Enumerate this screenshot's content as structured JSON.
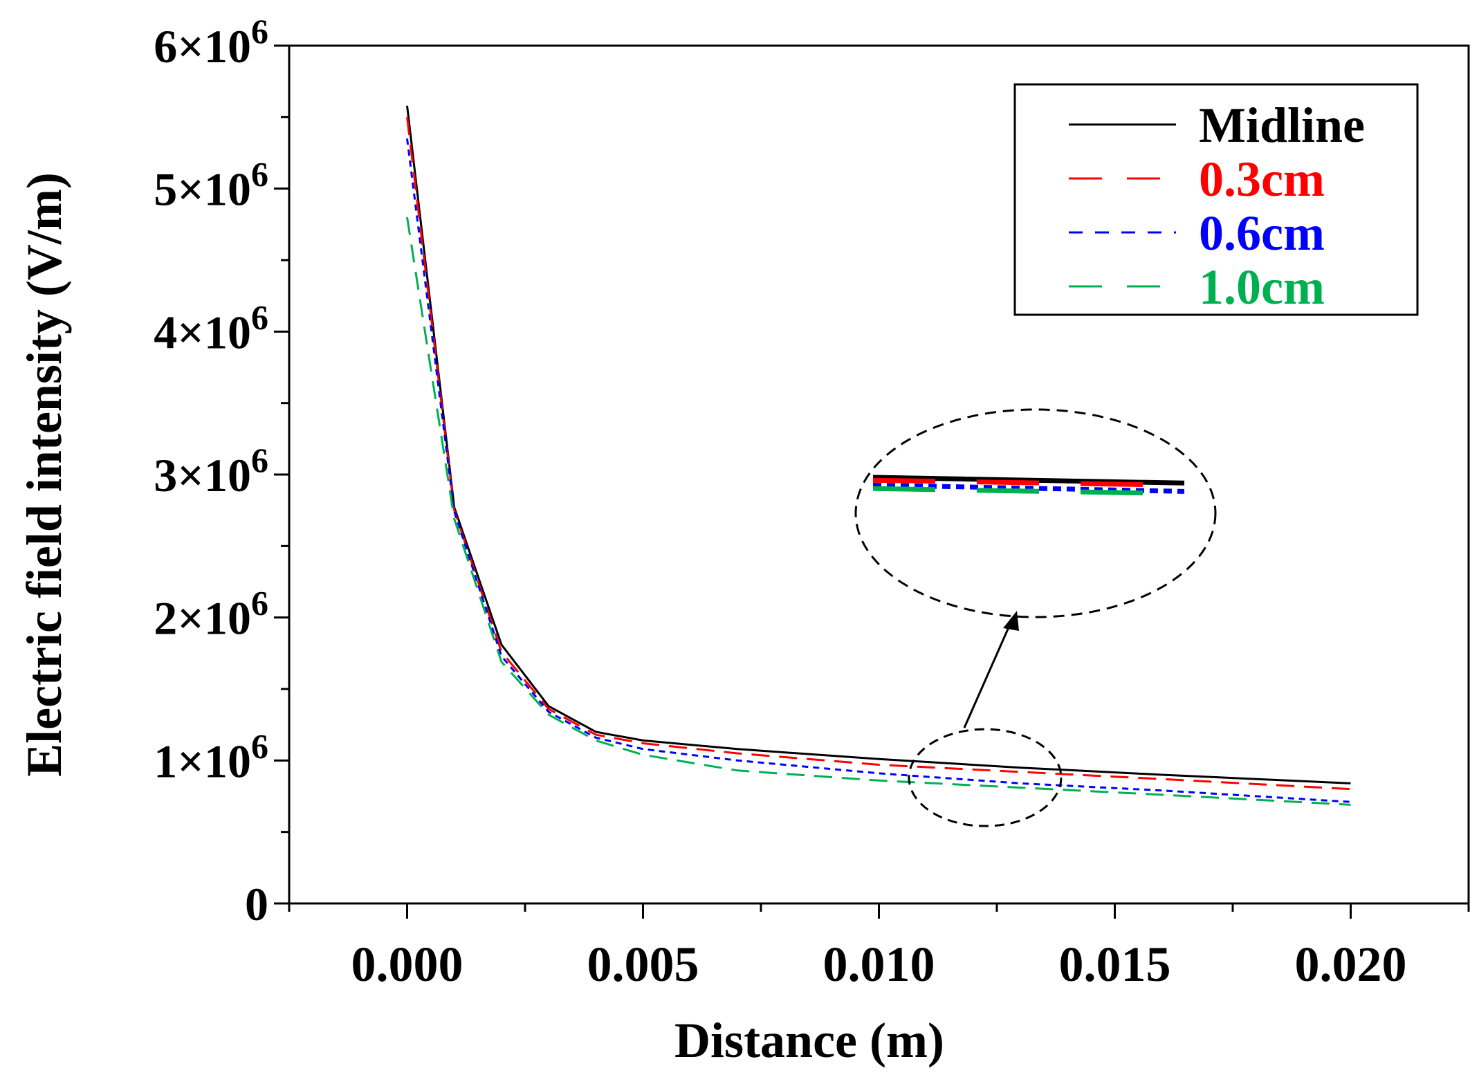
{
  "chart_data": {
    "type": "line",
    "title": "",
    "xlabel": "Distance (m)",
    "ylabel": "Electric field intensity (V/m)",
    "xlim": [
      -0.0025,
      0.0225
    ],
    "ylim": [
      0,
      6000000
    ],
    "x_ticks": [
      0.0,
      0.005,
      0.01,
      0.015,
      0.02
    ],
    "x_tick_labels": [
      "0.000",
      "0.005",
      "0.010",
      "0.015",
      "0.020"
    ],
    "y_ticks": [
      0,
      1000000,
      2000000,
      3000000,
      4000000,
      5000000,
      6000000
    ],
    "y_tick_labels": [
      {
        "mantissa": "0",
        "exponent": ""
      },
      {
        "mantissa": "1×10",
        "exponent": "6"
      },
      {
        "mantissa": "2×10",
        "exponent": "6"
      },
      {
        "mantissa": "3×10",
        "exponent": "6"
      },
      {
        "mantissa": "4×10",
        "exponent": "6"
      },
      {
        "mantissa": "5×10",
        "exponent": "6"
      },
      {
        "mantissa": "6×10",
        "exponent": "6"
      }
    ],
    "grid": false,
    "legend_position": "top-right",
    "x": [
      0.0,
      0.001,
      0.002,
      0.003,
      0.004,
      0.005,
      0.007,
      0.01,
      0.013,
      0.016,
      0.02
    ],
    "series": [
      {
        "name": "Midline",
        "color": "#000000",
        "dash": "solid",
        "values": [
          5580000,
          2770000,
          1810000,
          1380000,
          1200000,
          1140000,
          1080000,
          1010000,
          950000,
          900000,
          840000
        ]
      },
      {
        "name": "0.3cm",
        "color": "#ff0000",
        "dash": "long-dash",
        "values": [
          5500000,
          2750000,
          1760000,
          1360000,
          1180000,
          1120000,
          1050000,
          970000,
          920000,
          870000,
          800000
        ]
      },
      {
        "name": "0.6cm",
        "color": "#0000ff",
        "dash": "short-dash",
        "values": [
          5350000,
          2740000,
          1730000,
          1340000,
          1160000,
          1080000,
          1000000,
          910000,
          840000,
          790000,
          710000
        ]
      },
      {
        "name": "1.0cm",
        "color": "#00b050",
        "dash": "long-dash",
        "values": [
          4800000,
          2690000,
          1690000,
          1320000,
          1140000,
          1040000,
          930000,
          860000,
          810000,
          760000,
          690000
        ]
      }
    ],
    "annotations": [
      "dashed ellipse around the curves near x ≈ 0.0122 m with an arrow pointing to a magnified inset of the four curves"
    ]
  }
}
